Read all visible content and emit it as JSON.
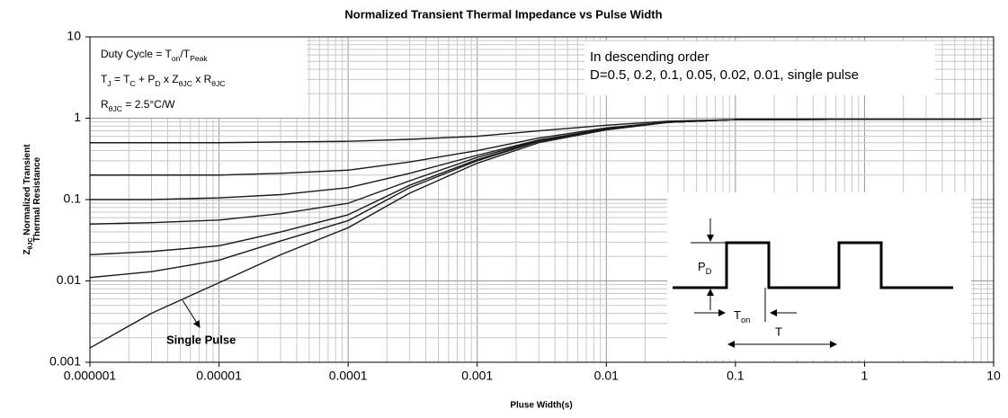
{
  "chart_data": {
    "type": "line",
    "title": "Normalized Transient Thermal Impedance vs Pulse Width",
    "x_label": "Pluse Width(s)",
    "y_label": [
      [
        {
          "t": "Z"
        },
        {
          "sub": "θJC"
        },
        {
          "t": " Normalized Transient"
        }
      ],
      [
        {
          "t": "Thermal Resistance"
        }
      ]
    ],
    "log_x": true,
    "log_y": true,
    "grid": true,
    "xlim": [
      1e-06,
      10
    ],
    "ylim": [
      0.001,
      10
    ],
    "xticks": [
      1e-06,
      1e-05,
      0.0001,
      0.001,
      0.01,
      0.1,
      1,
      10
    ],
    "yticks": [
      0.001,
      0.01,
      0.1,
      1,
      10
    ],
    "x": [
      1e-06,
      3e-06,
      1e-05,
      3e-05,
      0.0001,
      0.0003,
      0.001,
      0.003,
      0.01,
      0.03,
      0.1,
      1,
      8
    ],
    "series": [
      {
        "color": "#1a1a1a",
        "values": [
          0.5,
          0.5,
          0.5,
          0.51,
          0.52,
          0.55,
          0.6,
          0.7,
          0.82,
          0.92,
          0.96,
          0.97,
          0.97
        ]
      },
      {
        "color": "#1a1a1a",
        "values": [
          0.2,
          0.2,
          0.2,
          0.21,
          0.23,
          0.29,
          0.4,
          0.57,
          0.76,
          0.9,
          0.96,
          0.97,
          0.97
        ]
      },
      {
        "color": "#1a1a1a",
        "values": [
          0.1,
          0.1,
          0.105,
          0.115,
          0.14,
          0.21,
          0.35,
          0.54,
          0.74,
          0.89,
          0.96,
          0.97,
          0.97
        ]
      },
      {
        "color": "#1a1a1a",
        "values": [
          0.05,
          0.052,
          0.056,
          0.067,
          0.09,
          0.17,
          0.33,
          0.53,
          0.73,
          0.89,
          0.96,
          0.97,
          0.97
        ]
      },
      {
        "color": "#1a1a1a",
        "values": [
          0.021,
          0.023,
          0.027,
          0.04,
          0.065,
          0.15,
          0.31,
          0.52,
          0.73,
          0.89,
          0.96,
          0.97,
          0.97
        ]
      },
      {
        "color": "#1a1a1a",
        "values": [
          0.011,
          0.013,
          0.018,
          0.031,
          0.055,
          0.14,
          0.3,
          0.52,
          0.72,
          0.89,
          0.96,
          0.97,
          0.97
        ]
      },
      {
        "name": "Single Pulse",
        "color": "#1a1a1a",
        "values": [
          0.0015,
          0.004,
          0.0095,
          0.021,
          0.045,
          0.12,
          0.28,
          0.5,
          0.72,
          0.89,
          0.96,
          0.97,
          0.97
        ]
      }
    ],
    "annotations": {
      "box_left": [
        [
          {
            "t": "Duty Cycle = T"
          },
          {
            "sub": "on"
          },
          {
            "t": "/T"
          },
          {
            "sub": "Peak"
          }
        ],
        [
          {
            "t": "T"
          },
          {
            "sub": "J"
          },
          {
            "t": " = T"
          },
          {
            "sub": "C"
          },
          {
            "t": " + P"
          },
          {
            "sub": "D"
          },
          {
            "t": " x Z"
          },
          {
            "sub": "θJC"
          },
          {
            "t": " x R"
          },
          {
            "sub": "θJC"
          }
        ],
        [
          {
            "t": "R"
          },
          {
            "sub": "θJC"
          },
          {
            "t": " = 2.5°C/W"
          }
        ]
      ],
      "box_right": [
        "In descending order",
        "D=0.5, 0.2, 0.1, 0.05, 0.02, 0.01, single pulse"
      ],
      "inset": {
        "pd": [
          {
            "t": "P"
          },
          {
            "sub": "D"
          }
        ],
        "ton": [
          {
            "t": "T"
          },
          {
            "sub": "on"
          }
        ],
        "t": "T"
      }
    }
  }
}
